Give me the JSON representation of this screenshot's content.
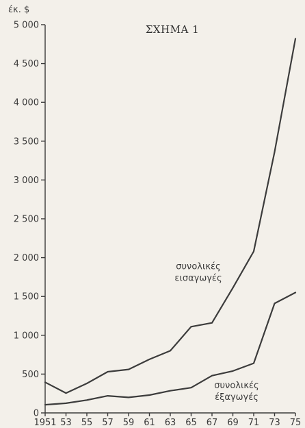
{
  "chart_data": {
    "type": "line",
    "title": "ΣΧΗΜΑ 1",
    "ylabel": "έκ. $",
    "xlabel": "",
    "x": [
      1951,
      1953,
      1955,
      1957,
      1959,
      1961,
      1963,
      1965,
      1967,
      1969,
      1971,
      1973,
      1975
    ],
    "x_tick_labels": [
      "1951",
      "53",
      "55",
      "57",
      "59",
      "61",
      "63",
      "65",
      "67",
      "69",
      "71",
      "73",
      "75"
    ],
    "y_ticks": [
      0,
      500,
      1000,
      1500,
      2000,
      2500,
      3000,
      3500,
      4000,
      4500,
      5000
    ],
    "y_tick_labels": [
      "0",
      "500",
      "1 000",
      "1 500",
      "2 000",
      "2 500",
      "3 000",
      "3 500",
      "4 000",
      "4 500",
      "5 000"
    ],
    "ylim": [
      0,
      5000
    ],
    "xlim": [
      1951,
      1975
    ],
    "grid": false,
    "series": [
      {
        "name_lines": [
          "συνολικές",
          "εισαγωγές"
        ],
        "values": [
          395,
          255,
          380,
          530,
          560,
          690,
          800,
          1110,
          1160,
          1610,
          2080,
          3360,
          4820
        ],
        "color": "#3c3c3c"
      },
      {
        "name_lines": [
          "συνολικές",
          "έξαγωγές"
        ],
        "values": [
          105,
          125,
          165,
          220,
          200,
          230,
          285,
          325,
          480,
          540,
          640,
          1410,
          1550
        ],
        "color": "#3c3c3c"
      }
    ]
  }
}
